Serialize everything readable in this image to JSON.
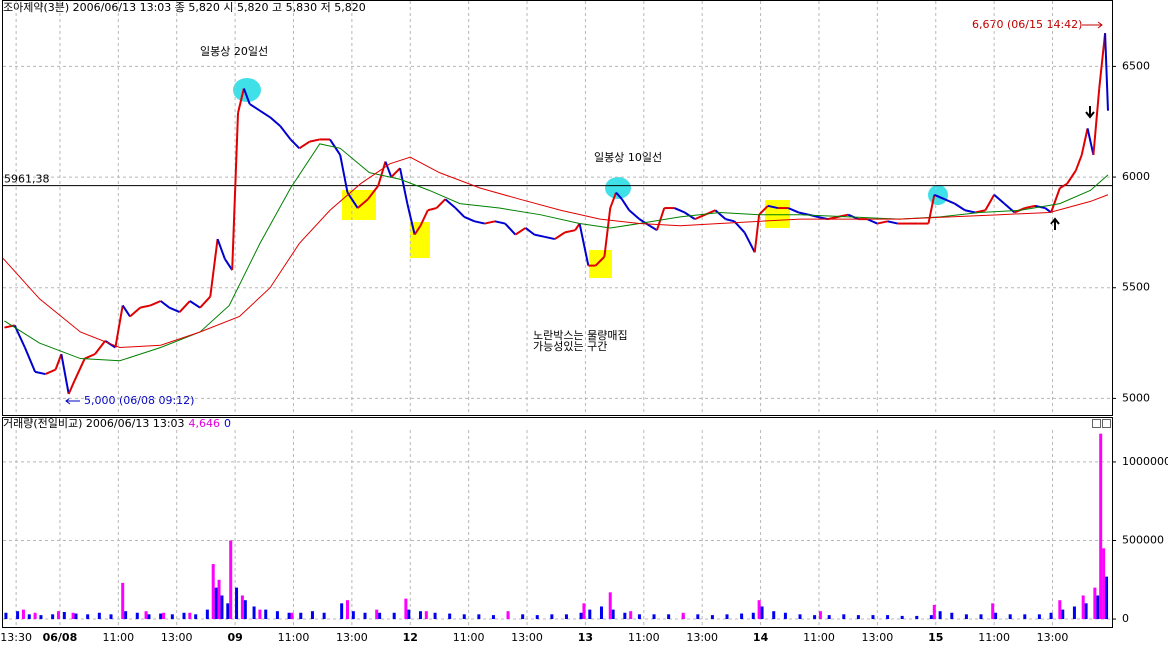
{
  "chart_data": [
    {
      "type": "line",
      "title": "조아제약(3분) 2006/06/13 13:03  종 5,820  시 5,820 고 5,830 저 5,820",
      "xlim": [
        0,
        757
      ],
      "ylim": [
        4925,
        6800
      ],
      "yticks": [
        5000,
        5500,
        6000,
        6500
      ],
      "grid": true,
      "reference_line": {
        "value": 5961.38,
        "label": "5961,38"
      },
      "annotations": [
        "일봉상 20일선",
        "일봉상 10일선",
        "노란박스는 물량매집",
        "가능성있는 구간",
        "6,670 (06/15 14:42)",
        "5,000 (06/08 09:12)"
      ],
      "series": [
        {
          "color": "#0000d0",
          "up_color": "#e00000",
          "x": [
            1,
            8,
            15,
            22,
            29,
            36,
            40,
            45,
            49,
            56,
            63,
            70,
            77,
            82,
            87,
            94,
            101,
            108,
            114,
            121,
            128,
            135,
            142,
            147,
            152,
            157,
            161,
            165,
            169,
            176,
            183,
            190,
            197,
            203,
            210,
            217,
            224,
            231,
            236,
            243,
            250,
            257,
            262,
            266,
            272,
            277,
            282,
            286,
            291,
            297,
            303,
            310,
            316,
            323,
            330,
            337,
            344,
            351,
            358,
            364,
            371,
            378,
            385,
            392,
            395,
            401,
            406,
            412,
            416,
            420,
            424,
            429,
            436,
            443,
            448,
            453,
            460,
            467,
            474,
            481,
            488,
            495,
            501,
            508,
            515,
            518,
            524,
            531,
            538,
            545,
            552,
            558,
            565,
            572,
            579,
            586,
            592,
            599,
            606,
            613,
            620,
            627,
            634,
            638,
            645,
            652,
            659,
            666,
            673,
            679,
            686,
            693,
            700,
            707,
            714,
            718,
            724,
            729,
            735,
            739,
            743,
            747,
            751,
            755,
            757
          ],
          "values": [
            5320,
            5330,
            5230,
            5120,
            5110,
            5130,
            5200,
            5020,
            5080,
            5180,
            5200,
            5260,
            5230,
            5420,
            5370,
            5410,
            5420,
            5440,
            5410,
            5390,
            5440,
            5410,
            5460,
            5720,
            5630,
            5580,
            6290,
            6400,
            6330,
            6300,
            6270,
            6230,
            6170,
            6130,
            6160,
            6170,
            6170,
            6100,
            5930,
            5860,
            5900,
            5960,
            6070,
            6000,
            6040,
            5880,
            5740,
            5780,
            5850,
            5860,
            5900,
            5860,
            5820,
            5800,
            5790,
            5800,
            5790,
            5740,
            5770,
            5740,
            5730,
            5720,
            5750,
            5760,
            5790,
            5600,
            5600,
            5640,
            5860,
            5930,
            5900,
            5850,
            5810,
            5780,
            5760,
            5860,
            5860,
            5840,
            5810,
            5830,
            5850,
            5810,
            5800,
            5750,
            5660,
            5830,
            5870,
            5860,
            5860,
            5840,
            5830,
            5820,
            5810,
            5820,
            5830,
            5810,
            5810,
            5790,
            5800,
            5790,
            5790,
            5790,
            5790,
            5920,
            5900,
            5880,
            5850,
            5840,
            5850,
            5920,
            5880,
            5840,
            5860,
            5870,
            5860,
            5840,
            5950,
            5970,
            6030,
            6100,
            6220,
            6100,
            6400,
            6650,
            6300
          ]
        },
        {
          "color": "#008000",
          "x": [
            1,
            25,
            53,
            80,
            108,
            135,
            155,
            176,
            197,
            217,
            231,
            251,
            272,
            292,
            313,
            340,
            368,
            395,
            416,
            436,
            464,
            491,
            518,
            546,
            580,
            614,
            642,
            669,
            697,
            724,
            745,
            757
          ],
          "values": [
            5350,
            5250,
            5180,
            5170,
            5230,
            5300,
            5420,
            5700,
            5950,
            6150,
            6130,
            6020,
            5990,
            5940,
            5880,
            5860,
            5830,
            5790,
            5770,
            5790,
            5820,
            5840,
            5830,
            5830,
            5820,
            5810,
            5820,
            5840,
            5850,
            5880,
            5940,
            6010
          ]
        },
        {
          "color": "#e00000",
          "x": [
            0,
            25,
            53,
            80,
            108,
            135,
            162,
            183,
            203,
            224,
            245,
            265,
            279,
            299,
            327,
            354,
            382,
            409,
            436,
            464,
            491,
            518,
            546,
            580,
            614,
            649,
            683,
            717,
            745,
            757
          ],
          "values": [
            5633,
            5450,
            5300,
            5230,
            5240,
            5300,
            5370,
            5500,
            5700,
            5850,
            5970,
            6060,
            6090,
            6020,
            5950,
            5900,
            5850,
            5810,
            5790,
            5780,
            5790,
            5800,
            5810,
            5810,
            5810,
            5820,
            5830,
            5840,
            5890,
            5920
          ]
        }
      ]
    },
    {
      "type": "bar",
      "title": "거래량(전일비교)  2006/06/13 13:03",
      "latest_texts": [
        "4,646",
        "0"
      ],
      "xlim": [
        0,
        757
      ],
      "ylim": [
        -57000,
        1216000
      ],
      "yticks": [
        0,
        500000,
        1000000
      ],
      "grid": true,
      "xticks": [
        {
          "value": 9,
          "label": "13:30"
        },
        {
          "value": 39,
          "label": "06/08"
        },
        {
          "value": 79,
          "label": "11:00"
        },
        {
          "value": 119,
          "label": "13:00"
        },
        {
          "value": 159,
          "label": "09"
        },
        {
          "value": 199,
          "label": "11:00"
        },
        {
          "value": 239,
          "label": "13:00"
        },
        {
          "value": 279,
          "label": "12"
        },
        {
          "value": 319,
          "label": "11:00"
        },
        {
          "value": 359,
          "label": "13:00"
        },
        {
          "value": 399,
          "label": "13"
        },
        {
          "value": 439,
          "label": "11:00"
        },
        {
          "value": 479,
          "label": "13:00"
        },
        {
          "value": 519,
          "label": "14"
        },
        {
          "value": 559,
          "label": "11:00"
        },
        {
          "value": 599,
          "label": "13:00"
        },
        {
          "value": 639,
          "label": "15"
        },
        {
          "value": 679,
          "label": "11:00"
        },
        {
          "value": 719,
          "label": "13:00"
        }
      ],
      "series": [
        {
          "color": "#0000f0",
          "x": [
            2,
            10,
            18,
            26,
            34,
            42,
            50,
            58,
            66,
            74,
            84,
            92,
            100,
            108,
            116,
            124,
            132,
            140,
            146,
            150,
            154,
            160,
            166,
            172,
            180,
            188,
            196,
            204,
            212,
            220,
            232,
            240,
            248,
            258,
            268,
            278,
            286,
            296,
            306,
            316,
            326,
            336,
            346,
            356,
            366,
            376,
            386,
            396,
            402,
            410,
            418,
            426,
            436,
            446,
            456,
            466,
            476,
            486,
            496,
            506,
            514,
            520,
            528,
            536,
            546,
            556,
            566,
            576,
            586,
            596,
            606,
            616,
            626,
            636,
            642,
            650,
            660,
            670,
            680,
            690,
            700,
            710,
            718,
            726,
            734,
            742,
            750,
            756
          ],
          "values": [
            40000,
            50000,
            30000,
            25000,
            30000,
            45000,
            35000,
            30000,
            40000,
            30000,
            50000,
            40000,
            30000,
            35000,
            30000,
            40000,
            30000,
            60000,
            200000,
            150000,
            100000,
            200000,
            120000,
            80000,
            60000,
            50000,
            40000,
            40000,
            50000,
            40000,
            100000,
            50000,
            40000,
            40000,
            40000,
            60000,
            50000,
            40000,
            35000,
            30000,
            30000,
            25000,
            30000,
            30000,
            25000,
            30000,
            30000,
            40000,
            60000,
            80000,
            60000,
            40000,
            30000,
            30000,
            30000,
            25000,
            30000,
            25000,
            30000,
            35000,
            40000,
            80000,
            50000,
            40000,
            30000,
            25000,
            25000,
            30000,
            25000,
            25000,
            25000,
            20000,
            20000,
            25000,
            50000,
            40000,
            30000,
            30000,
            40000,
            30000,
            30000,
            30000,
            40000,
            60000,
            80000,
            100000,
            150000,
            270000
          ]
        },
        {
          "color": "#ff00ff",
          "x": [
            14,
            22,
            38,
            48,
            82,
            98,
            110,
            128,
            144,
            148,
            156,
            164,
            176,
            198,
            236,
            256,
            276,
            290,
            346,
            398,
            416,
            430,
            466,
            518,
            560,
            638,
            678,
            724,
            740,
            748,
            752,
            754
          ],
          "values": [
            60000,
            40000,
            50000,
            40000,
            230000,
            50000,
            40000,
            40000,
            350000,
            250000,
            500000,
            150000,
            60000,
            40000,
            120000,
            60000,
            130000,
            50000,
            50000,
            100000,
            170000,
            50000,
            40000,
            120000,
            50000,
            90000,
            100000,
            120000,
            150000,
            200000,
            1180000,
            450000
          ]
        }
      ]
    }
  ]
}
